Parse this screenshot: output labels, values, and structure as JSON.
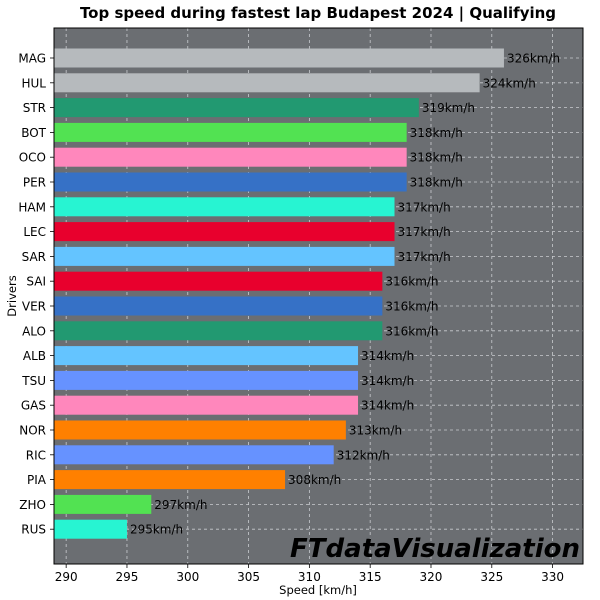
{
  "chart_data": {
    "type": "bar",
    "orientation": "horizontal",
    "title": "Top speed during fastest lap Budapest 2024 | Qualifying",
    "xlabel": "Speed [km/h]",
    "ylabel": "Drivers",
    "xlim": [
      289,
      332.5
    ],
    "xticks": [
      "290",
      "295",
      "300",
      "305",
      "310",
      "315",
      "320",
      "325",
      "330"
    ],
    "grid": true,
    "value_suffix": "km/h",
    "watermark": "FTdataVisualization",
    "colors": {
      "plot_background": "#6b6e72",
      "grid": "#c9ccd0"
    },
    "categories": [
      "MAG",
      "HUL",
      "STR",
      "BOT",
      "OCO",
      "PER",
      "HAM",
      "LEC",
      "SAR",
      "SAI",
      "VER",
      "ALO",
      "ALB",
      "TSU",
      "GAS",
      "NOR",
      "RIC",
      "PIA",
      "ZHO",
      "RUS"
    ],
    "values": [
      326,
      324,
      319,
      318,
      318,
      318,
      317,
      317,
      317,
      316,
      316,
      316,
      314,
      314,
      314,
      313,
      312,
      308,
      297,
      295
    ],
    "bar_colors": [
      "#b6babd",
      "#b6babd",
      "#229971",
      "#52e252",
      "#ff87bc",
      "#3671c6",
      "#27f4d2",
      "#e8002d",
      "#64c4ff",
      "#e8002d",
      "#3671c6",
      "#229971",
      "#64c4ff",
      "#6692ff",
      "#ff87bc",
      "#ff8000",
      "#6692ff",
      "#ff8000",
      "#52e252",
      "#27f4d2"
    ]
  }
}
